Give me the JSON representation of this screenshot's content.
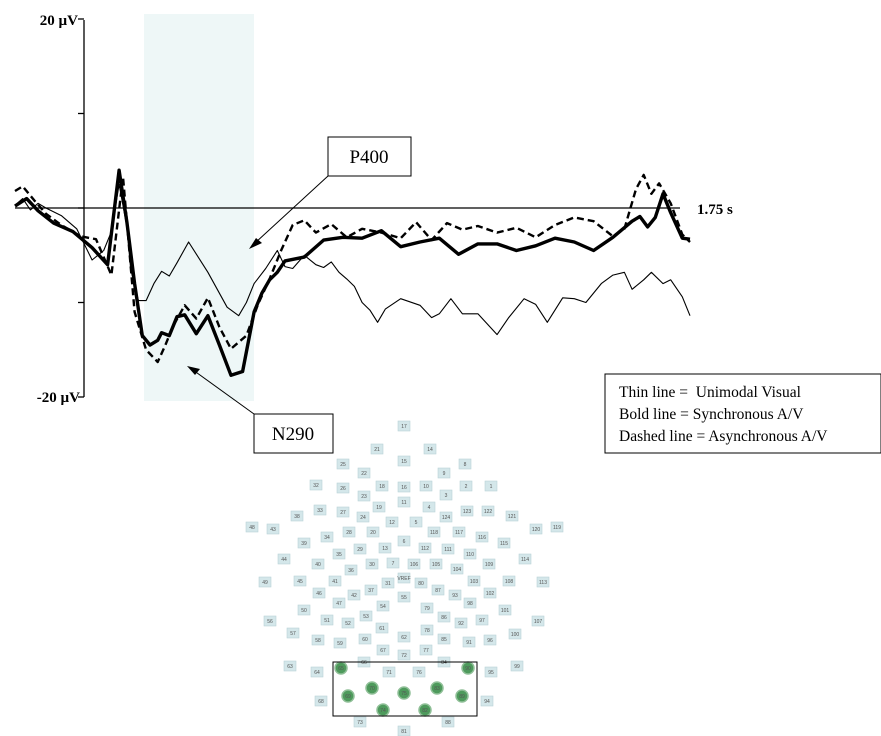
{
  "chart_data": {
    "type": "line",
    "ylim": [
      -20,
      20
    ],
    "y_top_label": "20 µV",
    "y_bottom_label": "-20 µV",
    "x_end_label": "1.75 s",
    "highlight": {
      "color": "#eef7f7"
    },
    "series": [
      {
        "name": "Unimodal Visual",
        "style": "thin",
        "x": [
          0.0,
          0.02,
          0.04,
          0.06,
          0.08,
          0.12,
          0.16,
          0.2,
          0.23,
          0.25,
          0.27,
          0.29,
          0.3,
          0.32,
          0.34,
          0.36,
          0.38,
          0.4,
          0.42,
          0.45,
          0.5,
          0.55,
          0.58,
          0.6,
          0.62,
          0.65,
          0.68,
          0.7,
          0.72,
          0.75,
          0.78,
          0.8,
          0.82,
          0.84,
          0.86,
          0.88,
          0.9,
          0.92,
          0.94,
          0.96,
          1.0,
          1.05,
          1.08,
          1.1,
          1.13,
          1.16,
          1.2,
          1.25,
          1.28,
          1.32,
          1.35,
          1.38,
          1.42,
          1.45,
          1.48,
          1.52,
          1.55,
          1.58,
          1.6,
          1.63,
          1.65,
          1.68,
          1.7,
          1.73,
          1.75
        ],
        "y": [
          0.3,
          1.0,
          -0.2,
          0.5,
          0.0,
          -0.8,
          -2.2,
          -5.5,
          -4.5,
          -2.5,
          2.5,
          -2.0,
          -6.5,
          -9.8,
          -9.8,
          -8.0,
          -6.7,
          -7.2,
          -5.8,
          -3.6,
          -6.8,
          -10.5,
          -11.4,
          -10.0,
          -8.0,
          -6.4,
          -4.5,
          -6.2,
          -6.4,
          -5.0,
          -6.0,
          -6.3,
          -5.7,
          -6.8,
          -7.5,
          -8.3,
          -10.0,
          -10.8,
          -12.1,
          -10.7,
          -9.6,
          -10.3,
          -11.6,
          -11.2,
          -9.6,
          -11.2,
          -11.2,
          -13.4,
          -11.6,
          -9.6,
          -10.2,
          -12.1,
          -9.5,
          -9.6,
          -10.0,
          -8.0,
          -7.1,
          -6.8,
          -8.6,
          -7.6,
          -6.8,
          -8.0,
          -7.6,
          -9.4,
          -11.4
        ]
      },
      {
        "name": "Synchronous A/V",
        "style": "bold",
        "x": [
          0.0,
          0.03,
          0.06,
          0.1,
          0.15,
          0.2,
          0.24,
          0.27,
          0.29,
          0.31,
          0.33,
          0.35,
          0.37,
          0.38,
          0.4,
          0.42,
          0.44,
          0.47,
          0.5,
          0.53,
          0.56,
          0.59,
          0.62,
          0.64,
          0.66,
          0.68,
          0.7,
          0.75,
          0.8,
          0.85,
          0.9,
          0.95,
          1.0,
          1.05,
          1.1,
          1.15,
          1.2,
          1.25,
          1.3,
          1.35,
          1.4,
          1.45,
          1.5,
          1.55,
          1.6,
          1.62,
          1.64,
          1.66,
          1.68,
          1.7,
          1.73,
          1.75
        ],
        "y": [
          0.2,
          1.0,
          -0.3,
          -1.6,
          -2.5,
          -4.2,
          -6.0,
          4.0,
          -1.5,
          -8.0,
          -13.5,
          -14.5,
          -14.0,
          -13.2,
          -13.5,
          -11.5,
          -11.3,
          -13.3,
          -11.4,
          -14.5,
          -17.7,
          -17.3,
          -11.0,
          -9.0,
          -7.6,
          -6.8,
          -5.6,
          -5.2,
          -3.4,
          -3.1,
          -3.2,
          -2.4,
          -4.1,
          -3.6,
          -3.2,
          -4.9,
          -3.8,
          -3.8,
          -4.5,
          -4.0,
          -3.2,
          -3.6,
          -4.5,
          -3.1,
          -1.4,
          -0.9,
          -2.0,
          -1.0,
          1.5,
          -0.5,
          -3.2,
          -3.3
        ]
      },
      {
        "name": "Asynchronous A/V",
        "style": "dashed",
        "x": [
          0.0,
          0.02,
          0.05,
          0.08,
          0.12,
          0.17,
          0.21,
          0.25,
          0.28,
          0.31,
          0.34,
          0.37,
          0.39,
          0.41,
          0.44,
          0.47,
          0.5,
          0.53,
          0.56,
          0.6,
          0.63,
          0.66,
          0.69,
          0.72,
          0.75,
          0.78,
          0.82,
          0.86,
          0.9,
          0.95,
          1.0,
          1.04,
          1.08,
          1.12,
          1.16,
          1.2,
          1.25,
          1.3,
          1.35,
          1.4,
          1.45,
          1.5,
          1.55,
          1.58,
          1.61,
          1.63,
          1.65,
          1.67,
          1.7,
          1.73,
          1.75
        ],
        "y": [
          1.8,
          2.3,
          0.8,
          -0.6,
          -1.8,
          -3.0,
          -3.3,
          -7.1,
          3.3,
          -11.0,
          -15.0,
          -16.3,
          -14.5,
          -12.5,
          -10.3,
          -11.7,
          -9.5,
          -12.6,
          -14.9,
          -13.5,
          -10.2,
          -7.5,
          -4.5,
          -1.8,
          -1.3,
          -2.6,
          -1.7,
          -3.1,
          -2.2,
          -2.6,
          -3.2,
          -1.5,
          -3.4,
          -1.6,
          -2.3,
          -1.9,
          -2.6,
          -2.1,
          -3.1,
          -1.8,
          -1.0,
          -1.4,
          -3.0,
          -2.2,
          2.0,
          3.5,
          1.5,
          2.6,
          0.5,
          -2.8,
          -3.6
        ]
      }
    ],
    "annotations": [
      {
        "label": "P400",
        "x": 0.62,
        "y": -8.0
      },
      {
        "label": "N290",
        "x": 0.44,
        "y": -17.0
      }
    ],
    "legend": [
      "Thin line =  Unimodal Visual",
      "Bold line = Synchronous A/V",
      "Dashed line = Asynchronous A/V"
    ]
  },
  "sensor_map": {
    "highlight_color": "#4e9a5c",
    "sensor_color": "#d4e7ea",
    "sensors": [
      {
        "label": "17"
      },
      {
        "label": "21"
      },
      {
        "label": "14"
      },
      {
        "label": "25"
      },
      {
        "label": "22"
      },
      {
        "label": "15"
      },
      {
        "label": "9"
      },
      {
        "label": "8"
      },
      {
        "label": "32"
      },
      {
        "label": "26"
      },
      {
        "label": "18"
      },
      {
        "label": "16"
      },
      {
        "label": "10"
      },
      {
        "label": "2"
      },
      {
        "label": "1"
      },
      {
        "label": "23"
      },
      {
        "label": "11"
      },
      {
        "label": "3"
      },
      {
        "label": "38"
      },
      {
        "label": "33"
      },
      {
        "label": "27"
      },
      {
        "label": "24"
      },
      {
        "label": "19"
      },
      {
        "label": "4"
      },
      {
        "label": "124"
      },
      {
        "label": "123"
      },
      {
        "label": "122"
      },
      {
        "label": "121"
      },
      {
        "label": "48"
      },
      {
        "label": "43"
      },
      {
        "label": "12"
      },
      {
        "label": "5"
      },
      {
        "label": "120"
      },
      {
        "label": "119"
      },
      {
        "label": "39"
      },
      {
        "label": "34"
      },
      {
        "label": "28"
      },
      {
        "label": "20"
      },
      {
        "label": "118"
      },
      {
        "label": "117"
      },
      {
        "label": "116"
      },
      {
        "label": "115"
      },
      {
        "label": "6"
      },
      {
        "label": "13"
      },
      {
        "label": "112"
      },
      {
        "label": "111"
      },
      {
        "label": "110"
      },
      {
        "label": "44"
      },
      {
        "label": "35"
      },
      {
        "label": "29"
      },
      {
        "label": "114"
      },
      {
        "label": "40"
      },
      {
        "label": "30"
      },
      {
        "label": "7"
      },
      {
        "label": "106"
      },
      {
        "label": "105"
      },
      {
        "label": "104"
      },
      {
        "label": "109"
      },
      {
        "label": "36"
      },
      {
        "label": "VREF"
      },
      {
        "label": "49"
      },
      {
        "label": "45"
      },
      {
        "label": "41"
      },
      {
        "label": "37"
      },
      {
        "label": "31"
      },
      {
        "label": "80"
      },
      {
        "label": "103"
      },
      {
        "label": "108"
      },
      {
        "label": "113"
      },
      {
        "label": "46"
      },
      {
        "label": "42"
      },
      {
        "label": "54"
      },
      {
        "label": "87"
      },
      {
        "label": "93"
      },
      {
        "label": "102"
      },
      {
        "label": "47"
      },
      {
        "label": "55"
      },
      {
        "label": "98"
      },
      {
        "label": "50"
      },
      {
        "label": "53"
      },
      {
        "label": "79"
      },
      {
        "label": "86"
      },
      {
        "label": "101"
      },
      {
        "label": "56"
      },
      {
        "label": "51"
      },
      {
        "label": "52"
      },
      {
        "label": "92"
      },
      {
        "label": "97"
      },
      {
        "label": "107"
      },
      {
        "label": "61"
      },
      {
        "label": "78"
      },
      {
        "label": "57"
      },
      {
        "label": "58"
      },
      {
        "label": "59"
      },
      {
        "label": "60"
      },
      {
        "label": "62"
      },
      {
        "label": "85"
      },
      {
        "label": "91"
      },
      {
        "label": "96"
      },
      {
        "label": "100"
      },
      {
        "label": "67"
      },
      {
        "label": "77"
      },
      {
        "label": "72"
      },
      {
        "label": "63"
      },
      {
        "label": "64"
      },
      {
        "label": "66"
      },
      {
        "label": "71"
      },
      {
        "label": "76"
      },
      {
        "label": "84"
      },
      {
        "label": "95"
      },
      {
        "label": "99"
      },
      {
        "label": "65",
        "highlighted": true
      },
      {
        "label": "90",
        "highlighted": true
      },
      {
        "label": "70",
        "highlighted": true
      },
      {
        "label": "75",
        "highlighted": true
      },
      {
        "label": "83",
        "highlighted": true
      },
      {
        "label": "69",
        "highlighted": true
      },
      {
        "label": "89",
        "highlighted": true
      },
      {
        "label": "68"
      },
      {
        "label": "94"
      },
      {
        "label": "74",
        "highlighted": true
      },
      {
        "label": "82",
        "highlighted": true
      },
      {
        "label": "73"
      },
      {
        "label": "88"
      },
      {
        "label": "81"
      }
    ]
  }
}
